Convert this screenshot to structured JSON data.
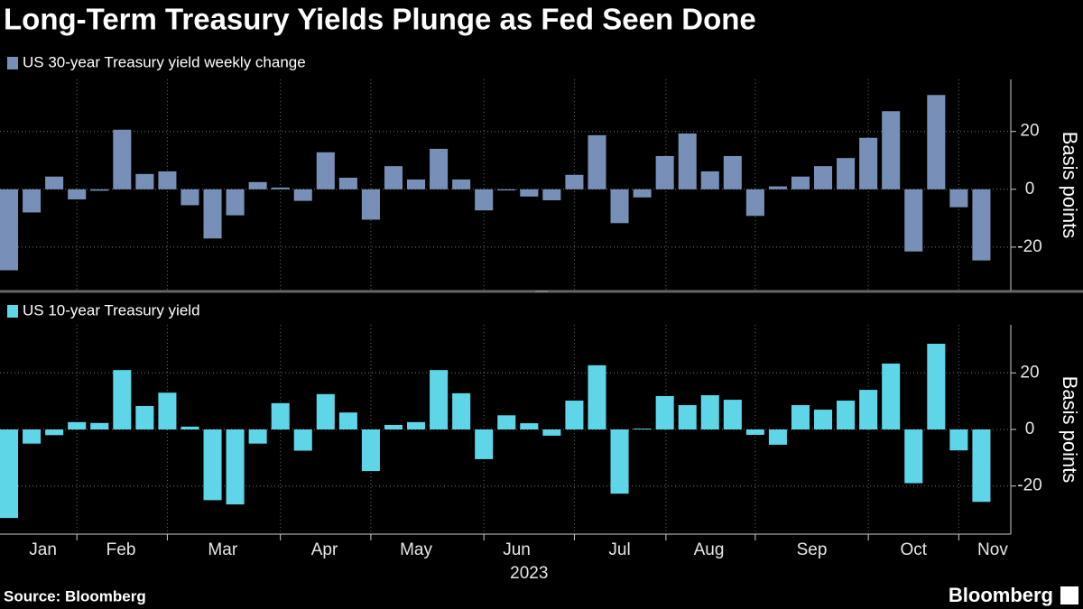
{
  "title": "Long-Term Treasury Yields Plunge as Fed Seen Done",
  "source": "Source: Bloomberg",
  "brand": "Bloomberg",
  "x_axis": {
    "categories": [
      null,
      null,
      null,
      null,
      null,
      null,
      null,
      null,
      null,
      null,
      null,
      null,
      null,
      null,
      null,
      null,
      null,
      null,
      null,
      null,
      null,
      null,
      null,
      null,
      null,
      null,
      null,
      null,
      null,
      null,
      null,
      null,
      null,
      null,
      null,
      null,
      null,
      null,
      null,
      null,
      null,
      null,
      null,
      null
    ],
    "xlim": [
      -0.4,
      44.3
    ],
    "grid": [
      3,
      7,
      12,
      16,
      21,
      25,
      29.05,
      33,
      38,
      42
    ],
    "xticks": [
      {
        "value": 1.5,
        "label": "Jan"
      },
      {
        "value": 4.95,
        "label": "Feb"
      },
      {
        "value": 9.45,
        "label": "Mar"
      },
      {
        "value": 13.95,
        "label": "Apr"
      },
      {
        "value": 18,
        "label": "May"
      },
      {
        "value": 22.45,
        "label": "Jun"
      },
      {
        "value": 27,
        "label": "Jul"
      },
      {
        "value": 30.95,
        "label": "Aug"
      },
      {
        "value": 35.5,
        "label": "Sep"
      },
      {
        "value": 40,
        "label": "Oct"
      },
      {
        "value": 43.5,
        "label": "Nov"
      }
    ],
    "label": "2023"
  },
  "chart_data": [
    {
      "type": "bar",
      "ylabel": "Basis points",
      "ylim": [
        -35,
        38
      ],
      "yticks": [
        -20,
        0,
        20
      ],
      "grid": true,
      "series": [
        {
          "name": "US 30-year Treasury yield weekly change",
          "color": "#7890b8",
          "values": [
            -28,
            -8,
            4.4,
            -3.5,
            -0.5,
            20.6,
            5.3,
            6.2,
            -5.5,
            -17,
            -9,
            2.5,
            0.6,
            -4,
            12.8,
            4,
            -10.5,
            8,
            3.4,
            14,
            3.4,
            -7.3,
            -0.4,
            -2.5,
            -3.8,
            5,
            18.7,
            -11.7,
            -2.8,
            11.5,
            19.3,
            6.2,
            11.5,
            -9.2,
            1,
            4.4,
            8,
            10.8,
            17.8,
            27,
            -21.5,
            32.6,
            -6.2,
            -24.6
          ]
        }
      ]
    },
    {
      "type": "bar",
      "ylabel": "Basis points",
      "ylim": [
        -37,
        37
      ],
      "yticks": [
        -20,
        0,
        20
      ],
      "grid": true,
      "series": [
        {
          "name": "US 10-year Treasury yield",
          "color": "#5ed6e8",
          "values": [
            -31.3,
            -5,
            -2,
            2.6,
            2.3,
            21,
            8.3,
            13,
            1,
            -25,
            -26.5,
            -5,
            9.3,
            -7.5,
            12.5,
            6,
            -14.7,
            1.6,
            2.6,
            21,
            12.8,
            -10.5,
            5,
            2.2,
            -2.2,
            10.2,
            22.7,
            -22.7,
            0.3,
            11.8,
            8.6,
            12.1,
            10.5,
            -1.9,
            -5.4,
            8.6,
            7,
            10.2,
            14,
            23.3,
            -19,
            30.3,
            -7.4,
            -25.6
          ]
        }
      ]
    }
  ]
}
